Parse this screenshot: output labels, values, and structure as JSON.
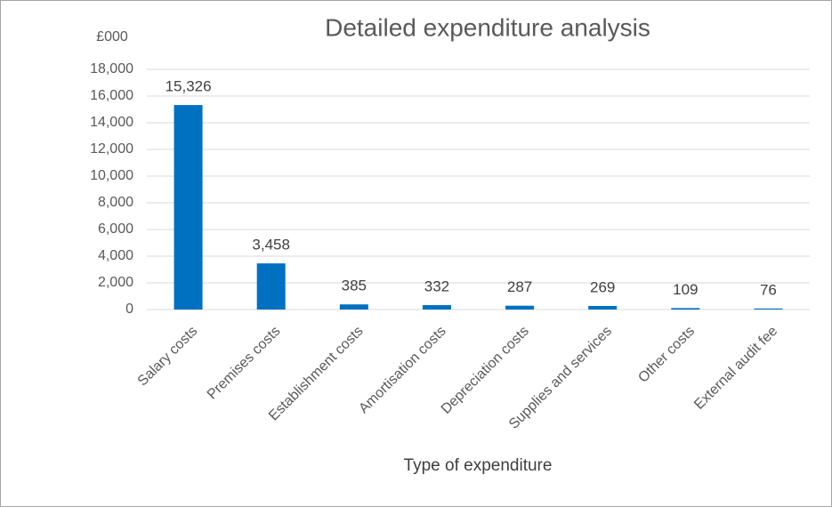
{
  "chart_data": {
    "type": "bar",
    "title": "Detailed expenditure analysis",
    "y_unit": "£000",
    "x_label": "Type of expenditure",
    "categories": [
      "Salary costs",
      "Premises costs",
      "Establishment costs",
      "Amortisation costs",
      "Depreciation costs",
      "Supplies and services",
      "Other costs",
      "External audit fee"
    ],
    "values": [
      15326,
      3458,
      385,
      332,
      287,
      269,
      109,
      76
    ],
    "value_labels": [
      "15,326",
      "3,458",
      "385",
      "332",
      "287",
      "269",
      "109",
      "76"
    ],
    "color": "#0070c0",
    "ylim": [
      0,
      18000
    ],
    "yticks": [
      0,
      {
        "value": 2000,
        "label": "2,000"
      },
      {
        "value": 4000,
        "label": "4,000"
      },
      {
        "value": 6000,
        "label": "6,000"
      },
      {
        "value": 8000,
        "label": "8,000"
      },
      {
        "value": 10000,
        "label": "10,000"
      },
      {
        "value": 12000,
        "label": "12,000"
      },
      {
        "value": 14000,
        "label": "14,000"
      },
      {
        "value": 16000,
        "label": "16,000"
      },
      {
        "value": 18000,
        "label": "18,000"
      }
    ],
    "grid": true
  }
}
